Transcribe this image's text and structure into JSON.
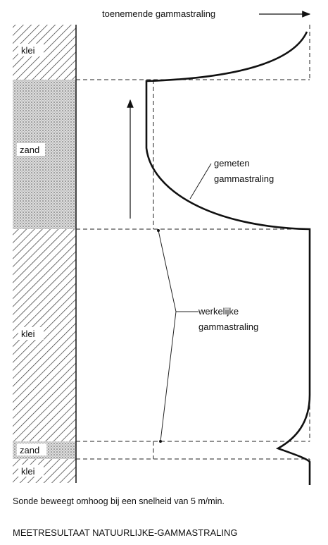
{
  "header": {
    "axis_label": "toenemende gammastraling"
  },
  "layers": [
    {
      "label": "klei"
    },
    {
      "label": "zand"
    },
    {
      "label": "klei"
    },
    {
      "label": "zand"
    },
    {
      "label": "klei"
    }
  ],
  "annotations": {
    "measured": {
      "lines": [
        "gemeten",
        "gammastraling"
      ]
    },
    "actual": {
      "lines": [
        "werkelijke",
        "gammastraling"
      ]
    }
  },
  "caption": "Sonde beweegt omhoog bij een snelheid van 5 m/min.",
  "title": "MEETRESULTAAT NATUURLIJKE-GAMMASTRALING"
}
